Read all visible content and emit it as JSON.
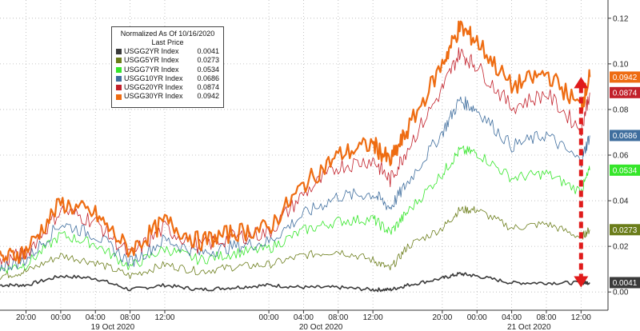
{
  "chart_data": {
    "type": "line",
    "legend": {
      "title_line1": "Normalized As Of 10/16/2020",
      "title_line2": "Last Price",
      "placement": "top-left"
    },
    "y_ticks": [
      "0.00",
      "0.02",
      "0.04",
      "0.06",
      "0.08",
      "0.10",
      "0.12"
    ],
    "ylim": [
      -0.008,
      0.128
    ],
    "grid": true,
    "x_ticks": [
      {
        "label": "20:00",
        "x": 20
      },
      {
        "label": "00:00",
        "x": 24
      },
      {
        "label": "04:00",
        "x": 28
      },
      {
        "label": "08:00",
        "x": 32
      },
      {
        "label": "12:00",
        "x": 36
      },
      {
        "label": "00:00",
        "x": 48
      },
      {
        "label": "04:00",
        "x": 52
      },
      {
        "label": "08:00",
        "x": 56
      },
      {
        "label": "12:00",
        "x": 60
      },
      {
        "label": "20:00",
        "x": 68
      },
      {
        "label": "00:00",
        "x": 72
      },
      {
        "label": "04:00",
        "x": 76
      },
      {
        "label": "08:00",
        "x": 80
      },
      {
        "label": "12:00",
        "x": 84
      }
    ],
    "day_labels": [
      {
        "label": "19 Oct 2020",
        "x": 30
      },
      {
        "label": "20 Oct 2020",
        "x": 54
      },
      {
        "label": "21 Oct 2020",
        "x": 78
      }
    ],
    "xlim": [
      17,
      86
    ],
    "series": [
      {
        "name": "USGG2YR Index",
        "last": "0.0041",
        "color": "#3a3a3a",
        "x": [
          17,
          20,
          24,
          28,
          32,
          36,
          40,
          44,
          48,
          52,
          56,
          60,
          62,
          64,
          68,
          70,
          72,
          76,
          80,
          84,
          85
        ],
        "y": [
          0.003,
          0.003,
          0.007,
          0.006,
          0.001,
          0.003,
          0.001,
          0.002,
          0.003,
          0.002,
          0.002,
          0.001,
          0.001,
          0.003,
          0.006,
          0.008,
          0.007,
          0.004,
          0.004,
          0.004,
          0.0041
        ]
      },
      {
        "name": "USGG5YR Index",
        "last": "0.0273",
        "color": "#6b7d1a",
        "x": [
          17,
          20,
          24,
          28,
          32,
          36,
          40,
          44,
          48,
          52,
          56,
          60,
          62,
          64,
          68,
          70,
          72,
          76,
          80,
          84,
          85
        ],
        "y": [
          0.007,
          0.009,
          0.016,
          0.013,
          0.007,
          0.012,
          0.009,
          0.011,
          0.012,
          0.016,
          0.018,
          0.014,
          0.01,
          0.02,
          0.028,
          0.036,
          0.036,
          0.028,
          0.03,
          0.024,
          0.0273
        ]
      },
      {
        "name": "USGG7YR Index",
        "last": "0.0534",
        "color": "#35e62a",
        "x": [
          17,
          20,
          24,
          28,
          32,
          36,
          40,
          44,
          48,
          52,
          56,
          60,
          62,
          64,
          68,
          70,
          72,
          76,
          80,
          84,
          85
        ],
        "y": [
          0.01,
          0.012,
          0.025,
          0.021,
          0.011,
          0.019,
          0.014,
          0.017,
          0.019,
          0.027,
          0.031,
          0.032,
          0.026,
          0.035,
          0.052,
          0.062,
          0.061,
          0.05,
          0.052,
          0.044,
          0.0534
        ]
      },
      {
        "name": "USGG10YR Index",
        "last": "0.0686",
        "color": "#3f6e9e",
        "x": [
          17,
          20,
          24,
          28,
          32,
          36,
          40,
          44,
          48,
          52,
          56,
          60,
          62,
          64,
          68,
          70,
          72,
          76,
          80,
          84,
          85
        ],
        "y": [
          0.011,
          0.014,
          0.03,
          0.025,
          0.013,
          0.023,
          0.017,
          0.02,
          0.022,
          0.034,
          0.042,
          0.043,
          0.037,
          0.048,
          0.07,
          0.084,
          0.08,
          0.064,
          0.069,
          0.057,
          0.0686
        ]
      },
      {
        "name": "USGG20YR Index",
        "last": "0.0874",
        "color": "#c2202a",
        "x": [
          17,
          20,
          24,
          28,
          32,
          36,
          40,
          44,
          48,
          52,
          56,
          60,
          62,
          64,
          68,
          70,
          72,
          76,
          80,
          84,
          85
        ],
        "y": [
          0.013,
          0.017,
          0.036,
          0.031,
          0.016,
          0.028,
          0.02,
          0.024,
          0.026,
          0.043,
          0.055,
          0.058,
          0.049,
          0.063,
          0.089,
          0.105,
          0.099,
          0.081,
          0.087,
          0.071,
          0.0874
        ]
      },
      {
        "name": "USGG30YR Index",
        "last": "0.0942",
        "color": "#ee6c12",
        "x": [
          17,
          20,
          24,
          28,
          32,
          36,
          40,
          44,
          48,
          52,
          56,
          60,
          62,
          64,
          68,
          70,
          72,
          76,
          80,
          84,
          85
        ],
        "y": [
          0.014,
          0.018,
          0.039,
          0.034,
          0.018,
          0.031,
          0.022,
          0.026,
          0.028,
          0.047,
          0.06,
          0.065,
          0.057,
          0.071,
          0.1,
          0.116,
          0.11,
          0.09,
          0.096,
          0.081,
          0.0942
        ]
      }
    ],
    "annotation": {
      "type": "double-arrow",
      "color": "#e01b1b",
      "x": 84,
      "y_from": 0.002,
      "y_to": 0.0942
    }
  }
}
